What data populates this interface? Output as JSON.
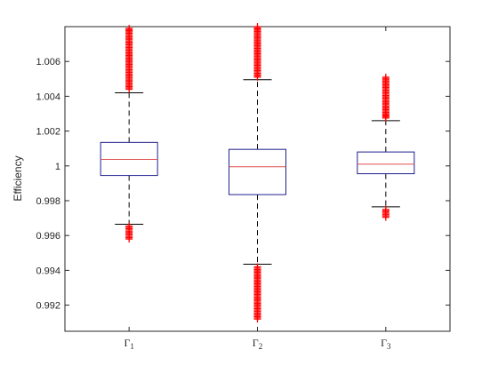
{
  "chart_data": {
    "type": "boxplot",
    "ylabel": "Efficiency",
    "ylim": [
      0.9905,
      1.008
    ],
    "yticks": [
      0.992,
      0.994,
      0.996,
      0.998,
      1,
      1.002,
      1.004,
      1.006
    ],
    "ytick_labels": [
      "0.992",
      "0.994",
      "0.996",
      "0.998",
      "1",
      "1.002",
      "1.004",
      "1.006"
    ],
    "grid": false,
    "colors": {
      "box": "#1f1f8f",
      "median": "#e05050",
      "whisker": "#000000",
      "outlier": "#ff0000"
    },
    "groups": [
      {
        "symbol": "Γ",
        "subscript": "1",
        "q1": 0.99945,
        "median": 1.00037,
        "q3": 1.00135,
        "whisker_low": 0.99665,
        "whisker_high": 1.0042,
        "outliers_low": [
          0.99655,
          0.9964,
          0.99625,
          0.9961,
          0.99595,
          0.9958
        ],
        "outliers_high": [
          1.0044,
          1.0047,
          1.005,
          1.0053,
          1.0056,
          1.0059,
          1.0062,
          1.0065,
          1.0068,
          1.0071,
          1.0074,
          1.0077,
          1.0079
        ]
      },
      {
        "symbol": "Γ",
        "subscript": "2",
        "q1": 0.99835,
        "median": 0.99995,
        "q3": 1.00095,
        "whisker_low": 0.99435,
        "whisker_high": 1.00495,
        "outliers_low": [
          0.9942,
          0.9939,
          0.9936,
          0.9933,
          0.993,
          0.9927,
          0.9924,
          0.9921,
          0.9918,
          0.9915,
          0.9912
        ],
        "outliers_high": [
          1.0051,
          1.0054,
          1.0057,
          1.006,
          1.0063,
          1.0066,
          1.0069,
          1.0072,
          1.0075,
          1.0078,
          1.008
        ]
      },
      {
        "symbol": "Γ",
        "subscript": "3",
        "q1": 0.99955,
        "median": 1.0001,
        "q3": 1.0008,
        "whisker_low": 0.99765,
        "whisker_high": 1.0026,
        "outliers_low": [
          0.9975,
          0.99735,
          0.9972,
          0.99705
        ],
        "outliers_high": [
          1.00275,
          1.003,
          1.0033,
          1.0036,
          1.0039,
          1.0042,
          1.0045,
          1.0048,
          1.0051
        ]
      }
    ]
  }
}
